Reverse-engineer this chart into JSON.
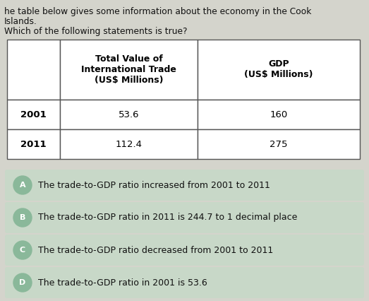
{
  "title_line1": "ᵀhe table below gives some information about the economy in the Cook",
  "title_line2": "Islands.",
  "question": "Which of the following statements is true?",
  "col_headers": [
    "",
    "Total Value of\nInternational Trade\n(US$ Millions)",
    "GDP\n(US$ Millions)"
  ],
  "rows": [
    [
      "2001",
      "53.6",
      "160"
    ],
    [
      "2011",
      "112.4",
      "275"
    ]
  ],
  "options": [
    {
      "label": "A",
      "text": "The trade-to-GDP ratio increased from 2001 to 2011"
    },
    {
      "label": "B",
      "text": "The trade-to-GDP ratio in 2011 is 244.7 to 1 decimal place"
    },
    {
      "label": "C",
      "text": "The trade-to-GDP ratio decreased from 2001 to 2011"
    },
    {
      "label": "D",
      "text": "The trade-to-GDP ratio in 2001 is 53.6"
    }
  ],
  "bg_color": "#d4d4cc",
  "option_pill_color": "#c8d8c8",
  "option_circle_color": "#8ab89a",
  "table_border_color": "#666666",
  "title_color": "#111111",
  "figw": 5.23,
  "figh": 4.26,
  "dpi": 100
}
